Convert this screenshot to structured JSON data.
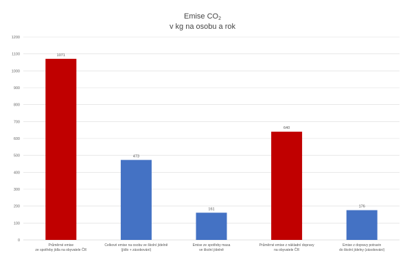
{
  "chart_data": {
    "type": "bar",
    "title_main": "Emise CO",
    "title_sub": "2",
    "title_line2": "v kg na osobu a rok",
    "categories": [
      [
        "Průměrné emise",
        "ze spotřeby jídla na obyvatele ČR"
      ],
      [
        "Celkové emise na osobu ve školní jídelně",
        "(jídlo + zásobování)"
      ],
      [
        "Emise ze spotřeby masa",
        "ve školní jídelně"
      ],
      [
        "Průměrné emise z nákladní dopravy",
        "na obyvatele ČR"
      ],
      [
        "Emise z dopravy potravin",
        "do školní jídelny (zásobování)"
      ]
    ],
    "values": [
      1071,
      473,
      161,
      640,
      176
    ],
    "data_labels": [
      "1071",
      "473",
      "161",
      "640",
      "176"
    ],
    "bar_colors": [
      "#c00000",
      "#4472c4",
      "#4472c4",
      "#c00000",
      "#4472c4"
    ],
    "ylim": [
      0,
      1200
    ],
    "yticks": [
      0,
      100,
      200,
      300,
      400,
      500,
      600,
      700,
      800,
      900,
      1000,
      1100,
      1200
    ],
    "grid": true,
    "legend": "none",
    "grid_color": "#d9d9d9",
    "axis_color": "#bfbfbf"
  }
}
